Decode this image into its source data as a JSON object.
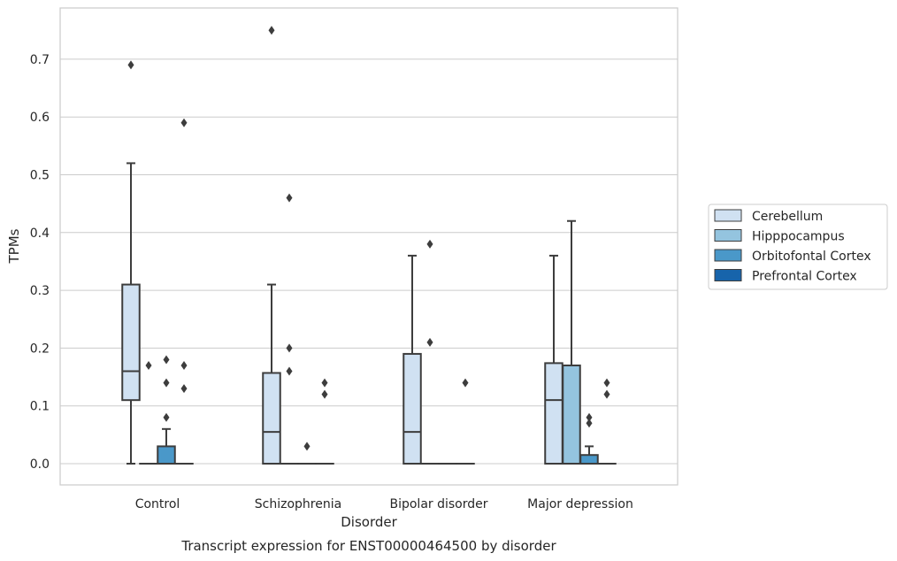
{
  "chart_data": {
    "type": "box",
    "caption": "Transcript expression for ENST00000464500 by disorder",
    "xlabel": "Disorder",
    "ylabel": "TPMs",
    "ylim": [
      -0.037,
      0.788
    ],
    "yticks": [
      0.0,
      0.1,
      0.2,
      0.3,
      0.4,
      0.5,
      0.6,
      0.7
    ],
    "ytick_labels": [
      "0.0",
      "0.1",
      "0.2",
      "0.3",
      "0.4",
      "0.5",
      "0.6",
      "0.7"
    ],
    "grid": true,
    "legend_position": "right",
    "categories": [
      "Control",
      "Schizophrenia",
      "Bipolar disorder",
      "Major depression"
    ],
    "series": [
      {
        "name": "Cerebellum",
        "color": "#d0e1f2",
        "boxes": [
          {
            "min": 0.0,
            "q1": 0.11,
            "median": 0.16,
            "q3": 0.31,
            "max": 0.52,
            "outliers": [
              0.69
            ]
          },
          {
            "min": 0.0,
            "q1": 0.0,
            "median": 0.055,
            "q3": 0.157,
            "max": 0.31,
            "outliers": [
              0.75
            ]
          },
          {
            "min": 0.0,
            "q1": 0.0,
            "median": 0.055,
            "q3": 0.19,
            "max": 0.36,
            "outliers": []
          },
          {
            "min": 0.0,
            "q1": 0.0,
            "median": 0.11,
            "q3": 0.174,
            "max": 0.36,
            "outliers": []
          }
        ]
      },
      {
        "name": "Hipppocampus",
        "color": "#94c4df",
        "boxes": [
          {
            "min": 0.0,
            "q1": 0.0,
            "median": 0.0,
            "q3": 0.0,
            "max": 0.0,
            "outliers": [
              0.17
            ]
          },
          {
            "min": 0.0,
            "q1": 0.0,
            "median": 0.0,
            "q3": 0.0,
            "max": 0.0,
            "outliers": [
              0.2,
              0.16,
              0.46
            ]
          },
          {
            "min": 0.0,
            "q1": 0.0,
            "median": 0.0,
            "q3": 0.0,
            "max": 0.0,
            "outliers": [
              0.38,
              0.21
            ]
          },
          {
            "min": 0.0,
            "q1": 0.0,
            "median": 0.0,
            "q3": 0.17,
            "max": 0.42,
            "outliers": []
          }
        ]
      },
      {
        "name": "Orbitofontal Cortex",
        "color": "#4a98c9",
        "boxes": [
          {
            "min": 0.0,
            "q1": 0.0,
            "median": 0.0,
            "q3": 0.03,
            "max": 0.06,
            "outliers": [
              0.18,
              0.14,
              0.08
            ]
          },
          {
            "min": 0.0,
            "q1": 0.0,
            "median": 0.0,
            "q3": 0.0,
            "max": 0.0,
            "outliers": [
              0.03
            ]
          },
          {
            "min": 0.0,
            "q1": 0.0,
            "median": 0.0,
            "q3": 0.0,
            "max": 0.0,
            "outliers": []
          },
          {
            "min": 0.0,
            "q1": 0.0,
            "median": 0.0,
            "q3": 0.015,
            "max": 0.03,
            "outliers": [
              0.08,
              0.07
            ]
          }
        ]
      },
      {
        "name": "Prefrontal Cortex",
        "color": "#1764ab",
        "boxes": [
          {
            "min": 0.0,
            "q1": 0.0,
            "median": 0.0,
            "q3": 0.0,
            "max": 0.0,
            "outliers": [
              0.59,
              0.17,
              0.13
            ]
          },
          {
            "min": 0.0,
            "q1": 0.0,
            "median": 0.0,
            "q3": 0.0,
            "max": 0.0,
            "outliers": [
              0.14,
              0.12
            ]
          },
          {
            "min": 0.0,
            "q1": 0.0,
            "median": 0.0,
            "q3": 0.0,
            "max": 0.0,
            "outliers": [
              0.14
            ]
          },
          {
            "min": 0.0,
            "q1": 0.0,
            "median": 0.0,
            "q3": 0.0,
            "max": 0.0,
            "outliers": [
              0.14,
              0.12
            ]
          }
        ]
      }
    ]
  }
}
